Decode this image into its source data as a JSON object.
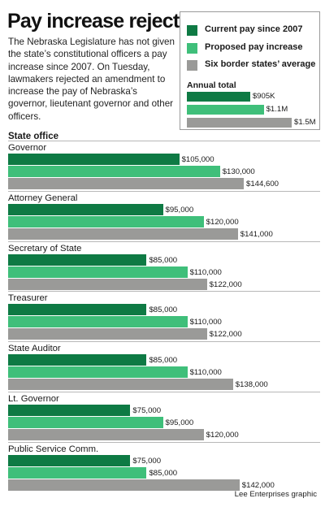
{
  "header": {
    "title": "Pay increase rejected",
    "intro": "The Nebraska Legislature has not given the state’s constitutional officers a pay increase since 2007. On Tuesday, lawmakers rejected an amendment to increase the pay of Nebraska’s governor, lieutenant governor and other officers."
  },
  "legend": {
    "items": [
      {
        "label": "Current pay since 2007",
        "color": "#0e7a44"
      },
      {
        "label": "Proposed pay increase",
        "color": "#3fbf7a"
      },
      {
        "label": "Six border states’ average",
        "color": "#9a9a98"
      }
    ],
    "annual_total_title": "Annual total"
  },
  "credit": "Lee Enterprises graphic",
  "chart_data": [
    {
      "type": "bar",
      "orientation": "horizontal",
      "title": "Annual total",
      "series": [
        {
          "name": "Current pay since 2007",
          "value": 905000,
          "label": "$905K"
        },
        {
          "name": "Proposed pay increase",
          "value": 1100000,
          "label": "$1.1M"
        },
        {
          "name": "Six border states’ average",
          "value": 1500000,
          "label": "$1.5M"
        }
      ]
    },
    {
      "type": "bar",
      "orientation": "horizontal",
      "category_header": "State office",
      "categories": [
        "Governor",
        "Attorney General",
        "Secretary of State",
        "Treasurer",
        "State Auditor",
        "Lt. Governor",
        "Public Service Comm."
      ],
      "series": [
        {
          "name": "Current pay since 2007",
          "values": [
            105000,
            95000,
            85000,
            85000,
            85000,
            75000,
            75000
          ],
          "labels": [
            "$105,000",
            "$95,000",
            "$85,000",
            "$85,000",
            "$85,000",
            "$75,000",
            "$75,000"
          ]
        },
        {
          "name": "Proposed pay increase",
          "values": [
            130000,
            120000,
            110000,
            110000,
            110000,
            95000,
            85000
          ],
          "labels": [
            "$130,000",
            "$120,000",
            "$110,000",
            "$110,000",
            "$110,000",
            "$95,000",
            "$85,000"
          ]
        },
        {
          "name": "Six border states’ average",
          "values": [
            144600,
            141000,
            122000,
            122000,
            138000,
            120000,
            142000
          ],
          "labels": [
            "$144,600",
            "$141,000",
            "$122,000",
            "$122,000",
            "$138,000",
            "$120,000",
            "$142,000"
          ]
        }
      ]
    }
  ]
}
